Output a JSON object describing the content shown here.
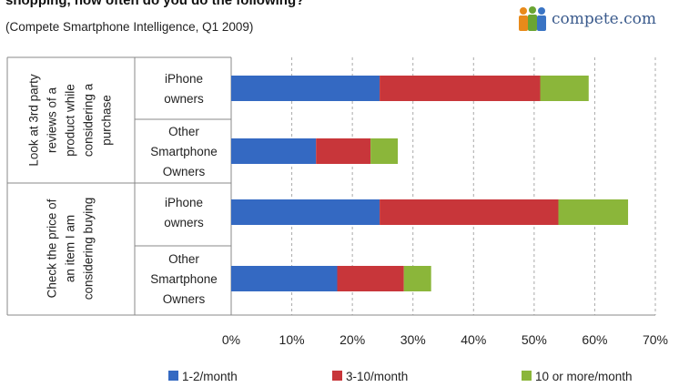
{
  "header": {
    "title": "shopping, how often do you do the following?",
    "subtitle": "(Compete Smartphone Intelligence, Q1 2009)",
    "logo_text": "compete.com",
    "logo_icon": "people-icon"
  },
  "colors": {
    "s1": "#3469c2",
    "s2": "#c8363a",
    "s3": "#8bb63a",
    "grid": "#aaaaaa",
    "axis": "#888888"
  },
  "chart_data": {
    "type": "bar",
    "orientation": "horizontal",
    "stacked": true,
    "groups": [
      {
        "label_lines": [
          "Look at 3rd party",
          "reviews of a",
          "product while",
          "considering a",
          "purchase"
        ],
        "categories": [
          "iPhone owners",
          "Other Smartphone Owners"
        ]
      },
      {
        "label_lines": [
          "Check the price of",
          "an item I am",
          "considering buying"
        ],
        "categories": [
          "iPhone owners",
          "Other Smartphone Owners"
        ]
      }
    ],
    "category_label_lines": [
      [
        "iPhone",
        "owners"
      ],
      [
        "Other",
        "Smartphone",
        "Owners"
      ],
      [
        "iPhone",
        "owners"
      ],
      [
        "Other",
        "Smartphone",
        "Owners"
      ]
    ],
    "series": [
      {
        "name": "1-2/month",
        "values": [
          24.5,
          14,
          24.5,
          17.5
        ]
      },
      {
        "name": "3-10/month",
        "values": [
          26.5,
          9,
          29.5,
          11
        ]
      },
      {
        "name": "10 or more/month",
        "values": [
          8,
          4.5,
          11.5,
          4.5
        ]
      }
    ],
    "x_ticks": [
      "0%",
      "10%",
      "20%",
      "30%",
      "40%",
      "50%",
      "60%",
      "70%"
    ],
    "xlim": [
      0,
      70
    ],
    "grid": true,
    "legend_position": "bottom"
  }
}
